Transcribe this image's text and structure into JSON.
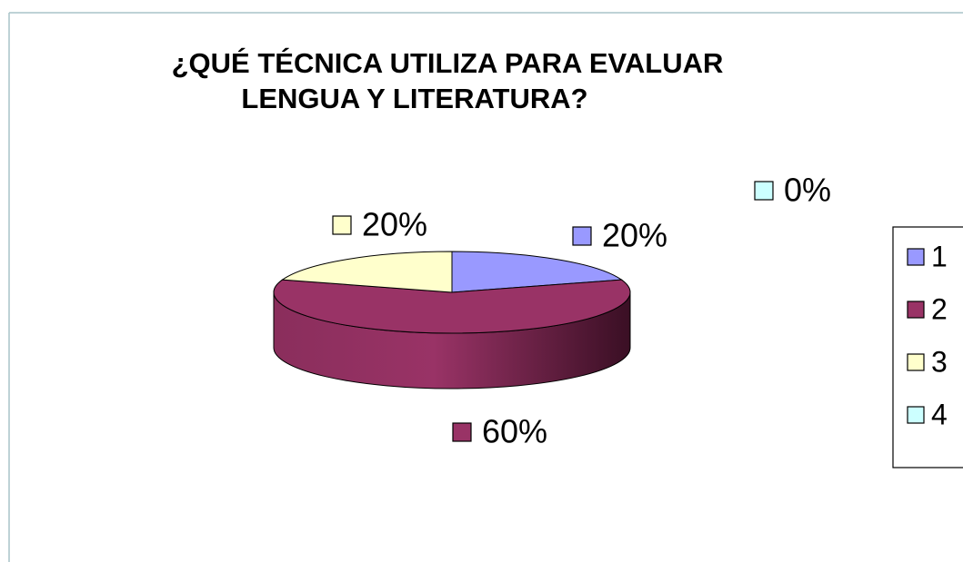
{
  "chart_data": {
    "type": "pie3d",
    "title": [
      "¿QUÉ TÉCNICA UTILIZA PARA EVALUAR",
      "LENGUA Y LITERATURA?"
    ],
    "categories": [
      "1",
      "2",
      "3",
      "4"
    ],
    "values": [
      20,
      60,
      20,
      0
    ],
    "value_labels": [
      "20%",
      "60%",
      "20%",
      "0%"
    ],
    "colors": [
      "#9999ff",
      "#993366",
      "#ffffcc",
      "#ccffff"
    ],
    "legend": "right"
  }
}
